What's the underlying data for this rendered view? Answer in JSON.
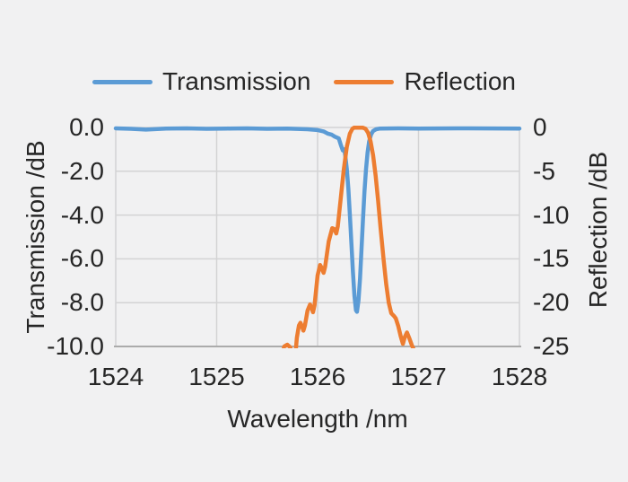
{
  "page": {
    "background": "#f1f1f2",
    "text_color": "#262626"
  },
  "legend": {
    "items": [
      {
        "label": "Transmission",
        "color": "#5b9bd5"
      },
      {
        "label": "Reflection",
        "color": "#ed7d31"
      }
    ]
  },
  "chart_data": {
    "type": "line",
    "xlabel": "Wavelength /nm",
    "ylabel_left": "Transmission /dB",
    "ylabel_right": "Reflection /dB",
    "xlim": [
      1524,
      1528
    ],
    "ylim_left": [
      -10,
      0
    ],
    "ylim_right": [
      -25,
      0
    ],
    "x_ticks": [
      1524,
      1525,
      1526,
      1527,
      1528
    ],
    "y_ticks_left": [
      "0.0",
      "-2.0",
      "-4.0",
      "-6.0",
      "-8.0",
      "-10.0"
    ],
    "y_ticks_left_values": [
      0,
      -2,
      -4,
      -6,
      -8,
      -10
    ],
    "y_ticks_right": [
      "0",
      "-5",
      "-10",
      "-15",
      "-20",
      "-25"
    ],
    "grid": true,
    "legend_position": "top",
    "colors": {
      "grid": "#d3d3d4",
      "axis": "#ababab"
    },
    "series": [
      {
        "name": "Transmission",
        "axis": "left",
        "color": "#5b9bd5",
        "points": [
          [
            1524.0,
            -0.04
          ],
          [
            1524.15,
            -0.06
          ],
          [
            1524.3,
            -0.1
          ],
          [
            1524.5,
            -0.05
          ],
          [
            1524.7,
            -0.04
          ],
          [
            1524.9,
            -0.06
          ],
          [
            1525.1,
            -0.05
          ],
          [
            1525.3,
            -0.04
          ],
          [
            1525.5,
            -0.06
          ],
          [
            1525.7,
            -0.05
          ],
          [
            1525.9,
            -0.08
          ],
          [
            1526.0,
            -0.12
          ],
          [
            1526.06,
            -0.18
          ],
          [
            1526.1,
            -0.28
          ],
          [
            1526.14,
            -0.33
          ],
          [
            1526.17,
            -0.42
          ],
          [
            1526.21,
            -0.5
          ],
          [
            1526.23,
            -0.8
          ],
          [
            1526.25,
            -1.05
          ],
          [
            1526.265,
            -1.0
          ],
          [
            1526.275,
            -1.3
          ],
          [
            1526.29,
            -1.9
          ],
          [
            1526.305,
            -2.8
          ],
          [
            1526.32,
            -4.0
          ],
          [
            1526.335,
            -5.3
          ],
          [
            1526.35,
            -6.6
          ],
          [
            1526.365,
            -7.7
          ],
          [
            1526.38,
            -8.35
          ],
          [
            1526.39,
            -8.42
          ],
          [
            1526.405,
            -7.9
          ],
          [
            1526.42,
            -6.9
          ],
          [
            1526.435,
            -5.6
          ],
          [
            1526.45,
            -4.2
          ],
          [
            1526.465,
            -2.9
          ],
          [
            1526.48,
            -1.9
          ],
          [
            1526.495,
            -1.15
          ],
          [
            1526.51,
            -0.65
          ],
          [
            1526.53,
            -0.32
          ],
          [
            1526.55,
            -0.16
          ],
          [
            1526.58,
            -0.08
          ],
          [
            1526.62,
            -0.05
          ],
          [
            1526.8,
            -0.04
          ],
          [
            1527.0,
            -0.05
          ],
          [
            1527.5,
            -0.04
          ],
          [
            1528.0,
            -0.05
          ]
        ]
      },
      {
        "name": "Reflection",
        "axis": "right",
        "color": "#ed7d31",
        "points": [
          [
            1525.63,
            -26.5
          ],
          [
            1525.67,
            -25.0
          ],
          [
            1525.7,
            -24.8
          ],
          [
            1525.73,
            -25.1
          ],
          [
            1525.755,
            -26.3
          ],
          [
            1525.78,
            -26.0
          ],
          [
            1525.795,
            -24.0
          ],
          [
            1525.815,
            -22.6
          ],
          [
            1525.83,
            -22.3
          ],
          [
            1525.845,
            -22.7
          ],
          [
            1525.86,
            -23.2
          ],
          [
            1525.875,
            -22.6
          ],
          [
            1525.9,
            -20.9
          ],
          [
            1525.925,
            -20.2
          ],
          [
            1525.94,
            -20.6
          ],
          [
            1525.955,
            -21.1
          ],
          [
            1525.97,
            -20.3
          ],
          [
            1526.0,
            -16.9
          ],
          [
            1526.025,
            -15.7
          ],
          [
            1526.04,
            -16.0
          ],
          [
            1526.06,
            -16.6
          ],
          [
            1526.075,
            -15.9
          ],
          [
            1526.11,
            -13.0
          ],
          [
            1526.145,
            -11.5
          ],
          [
            1526.165,
            -11.6
          ],
          [
            1526.185,
            -12.1
          ],
          [
            1526.2,
            -11.3
          ],
          [
            1526.23,
            -8.0
          ],
          [
            1526.26,
            -4.8
          ],
          [
            1526.29,
            -2.2
          ],
          [
            1526.32,
            -0.7
          ],
          [
            1526.345,
            -0.15
          ],
          [
            1526.36,
            -0.03
          ],
          [
            1526.42,
            -0.02
          ],
          [
            1526.45,
            -0.03
          ],
          [
            1526.475,
            -0.15
          ],
          [
            1526.5,
            -0.6
          ],
          [
            1526.525,
            -1.6
          ],
          [
            1526.55,
            -3.2
          ],
          [
            1526.575,
            -5.5
          ],
          [
            1526.6,
            -8.4
          ],
          [
            1526.625,
            -11.6
          ],
          [
            1526.655,
            -15.2
          ],
          [
            1526.68,
            -17.9
          ],
          [
            1526.705,
            -20.0
          ],
          [
            1526.73,
            -21.2
          ],
          [
            1526.755,
            -21.5
          ],
          [
            1526.775,
            -21.8
          ],
          [
            1526.8,
            -22.7
          ],
          [
            1526.825,
            -23.9
          ],
          [
            1526.845,
            -24.7
          ],
          [
            1526.865,
            -23.9
          ],
          [
            1526.885,
            -23.4
          ],
          [
            1526.91,
            -24.1
          ],
          [
            1526.935,
            -24.9
          ],
          [
            1526.96,
            -25.5
          ],
          [
            1527.0,
            -26.2
          ]
        ]
      }
    ]
  }
}
